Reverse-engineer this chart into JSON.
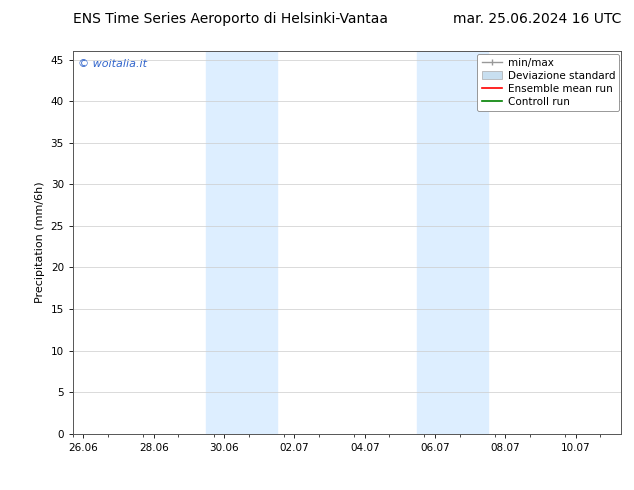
{
  "title_left": "ENS Time Series Aeroporto di Helsinki-Vantaa",
  "title_right": "mar. 25.06.2024 16 UTC",
  "ylabel": "Precipitation (mm/6h)",
  "watermark": "© woitalia.it",
  "x_tick_labels": [
    "26.06",
    "28.06",
    "30.06",
    "02.07",
    "04.07",
    "06.07",
    "08.07",
    "10.07"
  ],
  "x_tick_positions": [
    0,
    2,
    4,
    6,
    8,
    10,
    12,
    14
  ],
  "ylim": [
    0,
    46
  ],
  "yticks": [
    0,
    5,
    10,
    15,
    20,
    25,
    30,
    35,
    40,
    45
  ],
  "xlim": [
    -0.3,
    15.3
  ],
  "shaded_bands": [
    {
      "x_start": 3.5,
      "x_end": 5.5
    },
    {
      "x_start": 9.5,
      "x_end": 11.5
    }
  ],
  "shaded_color": "#ddeeff",
  "bg_color": "#ffffff",
  "plot_bg_color": "#ffffff",
  "grid_color": "#cccccc",
  "legend_items": [
    {
      "label": "min/max",
      "type": "minmax",
      "color": "#999999"
    },
    {
      "label": "Deviazione standard",
      "type": "band",
      "color": "#c8dff0",
      "edgecolor": "#aaaaaa"
    },
    {
      "label": "Ensemble mean run",
      "type": "line",
      "color": "#ff0000"
    },
    {
      "label": "Controll run",
      "type": "line",
      "color": "#008000"
    }
  ],
  "title_fontsize": 10,
  "axis_fontsize": 8,
  "tick_fontsize": 7.5,
  "legend_fontsize": 7.5,
  "watermark_color": "#3366cc",
  "watermark_fontsize": 8
}
